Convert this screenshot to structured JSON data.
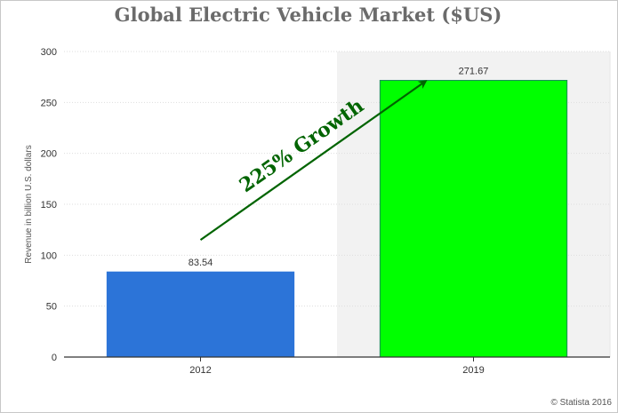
{
  "chart_data": {
    "type": "bar",
    "title": "Global Electric Vehicle Market ($US)",
    "ylabel": "Revenue in billion U.S. dollars",
    "xlabel": "",
    "categories": [
      "2012",
      "2019"
    ],
    "values": [
      83.54,
      271.67
    ],
    "value_labels": [
      "83.54",
      "271.67"
    ],
    "bar_colors": [
      "#2c74d8",
      "#00ff00"
    ],
    "bar_stroke": [
      "#2c74d8",
      "#1a8a5a"
    ],
    "ylim": [
      0,
      300
    ],
    "yticks": [
      0,
      50,
      100,
      150,
      200,
      250,
      300
    ],
    "grid": true,
    "highlight_band_category": "2019",
    "annotation": {
      "text": "225% Growth",
      "color": "#006400",
      "from": {
        "category": "2012",
        "value": 115
      },
      "to": {
        "category": "2019",
        "value": 270
      }
    },
    "credit": "© Statista 2016"
  }
}
